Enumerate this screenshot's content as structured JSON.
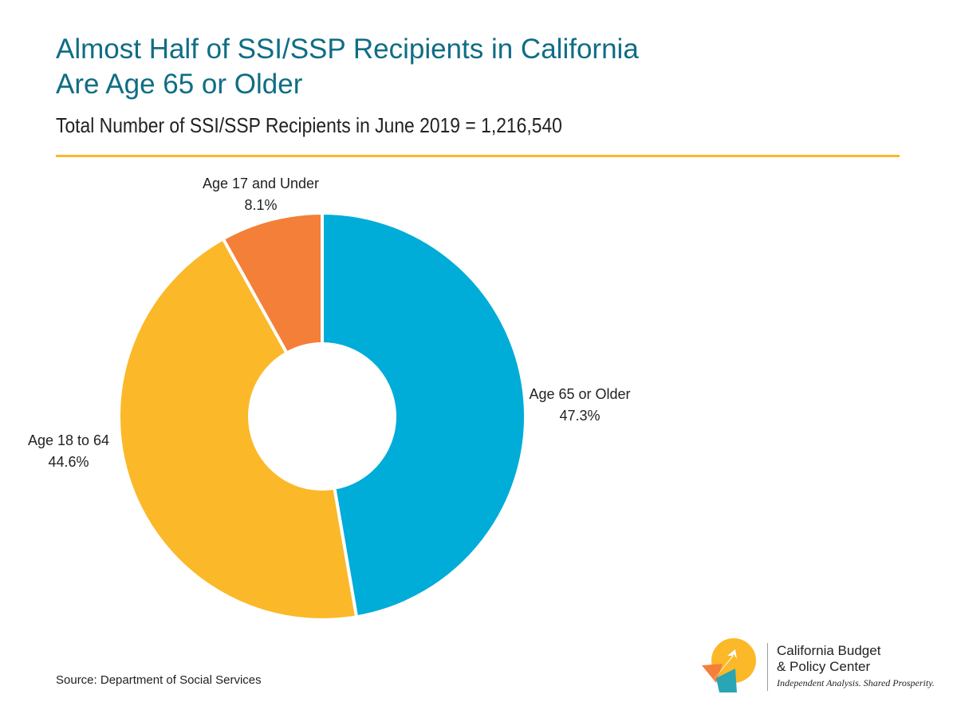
{
  "title_line1": "Almost Half of SSI/SSP Recipients in California",
  "title_line2": "Are Age 65 or Older",
  "subtitle": "Total Number of SSI/SSP Recipients in June 2019 = 1,216,540",
  "source": "Source: Department of Social Services",
  "logo": {
    "name_line1": "California Budget",
    "name_line2": "& Policy Center",
    "tagline": "Independent Analysis. Shared Prosperity."
  },
  "colors": {
    "title": "#0f6d85",
    "rule": "#fbb829",
    "age65": "#00acd8",
    "age18": "#fbb829",
    "age17": "#f47f38"
  },
  "chart_data": {
    "type": "pie",
    "variant": "donut",
    "slices": [
      {
        "name": "Age 65 or Older",
        "percent_label": "47.3%",
        "value": 47.3,
        "color": "#00acd8"
      },
      {
        "name": "Age 18 to 64",
        "percent_label": "44.6%",
        "value": 44.6,
        "color": "#fbb829"
      },
      {
        "name": "Age 17 and Under",
        "percent_label": "8.1%",
        "value": 8.1,
        "color": "#f47f38"
      }
    ]
  }
}
